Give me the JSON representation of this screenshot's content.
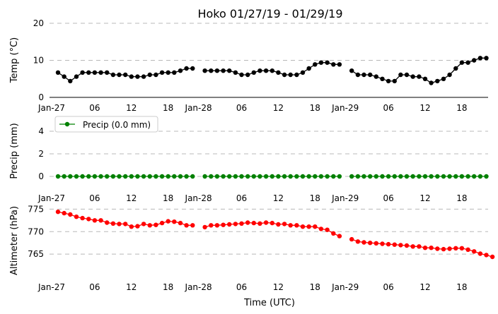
{
  "title": "Hoko 01/27/19 - 01/29/19",
  "xlabel": "Time (UTC)",
  "xtick_labels": [
    "Jan-27",
    "06",
    "12",
    "18",
    "Jan-28",
    "06",
    "12",
    "18",
    "Jan-29",
    "06",
    "12",
    "18"
  ],
  "chart_data": [
    {
      "type": "line",
      "ylabel": "Temp (°C)",
      "ylim": [
        0,
        20
      ],
      "yticks": [
        0,
        10,
        20
      ],
      "x_unit": "hours since Jan-27 00:00 UTC",
      "x_start": 0,
      "x_step": 1,
      "color": "#000000",
      "grid": true,
      "series": [
        {
          "name": "Temp",
          "values": [
            6.7,
            5.6,
            4.4,
            5.6,
            6.7,
            6.7,
            6.7,
            6.7,
            6.7,
            6.1,
            6.1,
            6.1,
            5.6,
            5.6,
            5.6,
            6.1,
            6.1,
            6.7,
            6.7,
            6.7,
            7.2,
            7.8,
            7.8,
            null,
            7.2,
            7.2,
            7.2,
            7.2,
            7.2,
            6.7,
            6.1,
            6.1,
            6.7,
            7.2,
            7.2,
            7.2,
            6.7,
            6.1,
            6.1,
            6.1,
            6.7,
            7.8,
            8.9,
            9.4,
            9.4,
            8.9,
            8.9,
            null,
            7.2,
            6.1,
            6.1,
            6.1,
            5.6,
            5.0,
            4.4,
            4.4,
            6.1,
            6.1,
            5.6,
            5.6,
            5.0,
            3.9,
            4.4,
            5.0,
            6.1,
            7.8,
            9.4,
            9.4,
            10.0,
            10.6,
            10.6
          ]
        }
      ]
    },
    {
      "type": "line",
      "ylabel": "Precip (mm)",
      "ylim": [
        -1,
        5
      ],
      "yticks": [
        0,
        2,
        4
      ],
      "x_unit": "hours since Jan-27 00:00 UTC",
      "x_start": 0,
      "x_step": 1,
      "color": "#008000",
      "grid": true,
      "legend": "Precip (0.0 mm)",
      "legend_position": "top-left",
      "series": [
        {
          "name": "Precip (0.0 mm)",
          "values": [
            0,
            0,
            0,
            0,
            0,
            0,
            0,
            0,
            0,
            0,
            0,
            0,
            0,
            0,
            0,
            0,
            0,
            0,
            0,
            0,
            0,
            0,
            0,
            null,
            0,
            0,
            0,
            0,
            0,
            0,
            0,
            0,
            0,
            0,
            0,
            0,
            0,
            0,
            0,
            0,
            0,
            0,
            0,
            0,
            0,
            0,
            0,
            null,
            0,
            0,
            0,
            0,
            0,
            0,
            0,
            0,
            0,
            0,
            0,
            0,
            0,
            0,
            0,
            0,
            0,
            0,
            0,
            0,
            0,
            0,
            0
          ]
        }
      ]
    },
    {
      "type": "line",
      "ylabel": "Altimeter (hPa)",
      "ylim": [
        760,
        776
      ],
      "yticks": [
        765,
        770,
        775
      ],
      "x_unit": "hours since Jan-27 00:00 UTC",
      "x_start": 0,
      "x_step": 1,
      "color": "#ff0000",
      "grid": true,
      "series": [
        {
          "name": "Altimeter",
          "values": [
            774.4,
            774.1,
            773.8,
            773.3,
            773.0,
            772.8,
            772.5,
            772.5,
            772.0,
            771.8,
            771.7,
            771.7,
            771.1,
            771.2,
            771.7,
            771.4,
            771.5,
            771.9,
            772.3,
            772.2,
            771.9,
            771.4,
            771.4,
            null,
            771.0,
            771.4,
            771.4,
            771.5,
            771.6,
            771.7,
            771.8,
            772.0,
            771.9,
            771.8,
            772.0,
            771.9,
            771.6,
            771.7,
            771.4,
            771.4,
            771.1,
            771.1,
            771.1,
            770.6,
            770.4,
            769.6,
            769.0,
            null,
            768.3,
            767.8,
            767.6,
            767.5,
            767.4,
            767.3,
            767.2,
            767.1,
            767.0,
            766.9,
            766.7,
            766.7,
            766.4,
            766.4,
            766.2,
            766.1,
            766.2,
            766.3,
            766.3,
            766.0,
            765.6,
            765.1,
            764.8,
            764.4
          ]
        }
      ]
    }
  ]
}
